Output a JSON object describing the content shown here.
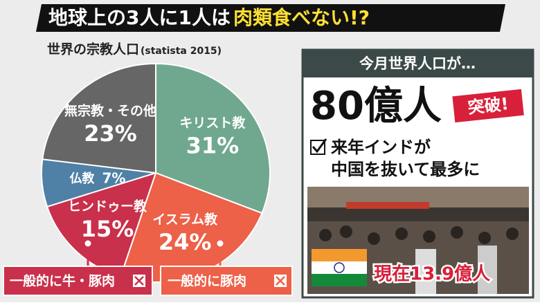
{
  "title": {
    "main": "地球上の3人に1人は",
    "highlight": "肉類食べない!?"
  },
  "chart_data": {
    "type": "pie",
    "title": "世界の宗教人口",
    "subtitle": "(statista 2015)",
    "categories": [
      "キリスト教",
      "イスラム教",
      "ヒンドゥー教",
      "仏教",
      "無宗教・その他"
    ],
    "values": [
      31,
      24,
      15,
      7,
      23
    ],
    "value_labels": [
      "31%",
      "24%",
      "15%",
      "7%",
      "23%"
    ],
    "colors": [
      "#6fa88f",
      "#ec6148",
      "#c9304b",
      "#4f80a6",
      "#666666"
    ],
    "annotations": [
      "一般的に牛・豚肉",
      "一般的に豚肉"
    ]
  },
  "panel": {
    "header": "今月世界人口が…",
    "headline": "80億人",
    "badge": "突破!",
    "check_lines": [
      "来年インドが",
      "中国を抜いて最多に"
    ],
    "caption": "現在13.9億人"
  }
}
